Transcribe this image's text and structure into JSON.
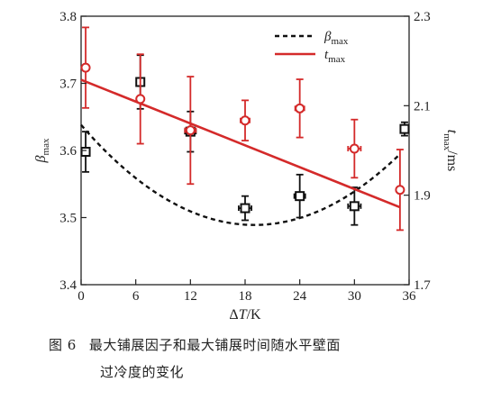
{
  "chart_data": {
    "type": "scatter",
    "x_axis": {
      "label": "ΔT/K",
      "label_italic_part": "T",
      "ticks": [
        0,
        6,
        12,
        18,
        24,
        30,
        36
      ],
      "range": [
        0,
        36
      ]
    },
    "y_left": {
      "label": "β",
      "label_sub": "max",
      "ticks": [
        "3.4",
        "3.5",
        "3.6",
        "3.7",
        "3.8"
      ],
      "range": [
        3.4,
        3.8
      ]
    },
    "y_right": {
      "label": "t",
      "label_sub": "max",
      "label_unit": "/ms",
      "ticks": [
        "1.7",
        "1.9",
        "2.1",
        "2.3"
      ],
      "range": [
        1.7,
        2.3
      ]
    },
    "legend": {
      "placement": "top-right",
      "entries": [
        {
          "name": "β",
          "sub": "max",
          "style": "dashed",
          "color": "#111111"
        },
        {
          "name": "t",
          "sub": "max",
          "style": "solid",
          "color": "#d42a2a"
        }
      ]
    },
    "series": [
      {
        "name": "βmax",
        "axis": "left",
        "color": "#111111",
        "marker": "square",
        "points": [
          {
            "x": 0.5,
            "y": 3.598,
            "yerr": 0.03,
            "xerr": 0.0
          },
          {
            "x": 6.5,
            "y": 3.702,
            "yerr": 0.04,
            "xerr": 0.0
          },
          {
            "x": 12.0,
            "y": 3.628,
            "yerr": 0.03,
            "xerr": 0.6
          },
          {
            "x": 18.0,
            "y": 3.514,
            "yerr": 0.018,
            "xerr": 0.7
          },
          {
            "x": 24.0,
            "y": 3.532,
            "yerr": 0.032,
            "xerr": 0.6
          },
          {
            "x": 30.0,
            "y": 3.517,
            "yerr": 0.028,
            "xerr": 0.7
          },
          {
            "x": 35.5,
            "y": 3.632,
            "yerr": 0.01,
            "xerr": 0.4
          }
        ],
        "fit": {
          "type": "quadratic",
          "style": "dashed",
          "x": [
            0,
            35
          ],
          "vertex": [
            19.0,
            3.489
          ],
          "value_at_0": 3.638,
          "value_at_35": 3.598
        }
      },
      {
        "name": "tmax",
        "axis": "right",
        "color": "#d42a2a",
        "marker": "circle",
        "points": [
          {
            "x": 0.5,
            "y": 2.185,
            "yerr": 0.09,
            "xerr": 0.0
          },
          {
            "x": 6.5,
            "y": 2.115,
            "yerr": 0.1,
            "xerr": 0.0
          },
          {
            "x": 12.0,
            "y": 2.045,
            "yerr": 0.12,
            "xerr": 0.6
          },
          {
            "x": 18.0,
            "y": 2.067,
            "yerr": 0.045,
            "xerr": 0.5
          },
          {
            "x": 24.0,
            "y": 2.094,
            "yerr": 0.065,
            "xerr": 0.5
          },
          {
            "x": 30.0,
            "y": 2.004,
            "yerr": 0.065,
            "xerr": 0.7
          },
          {
            "x": 35.0,
            "y": 1.912,
            "yerr": 0.09,
            "xerr": 0.0
          }
        ],
        "fit": {
          "type": "linear",
          "style": "solid",
          "x": [
            0,
            35
          ],
          "y": [
            2.158,
            1.873
          ]
        }
      }
    ]
  },
  "caption": {
    "figure_number": "图 6",
    "line1": "最大铺展因子和最大铺展时间随水平壁面",
    "line2": "过冷度的变化"
  }
}
